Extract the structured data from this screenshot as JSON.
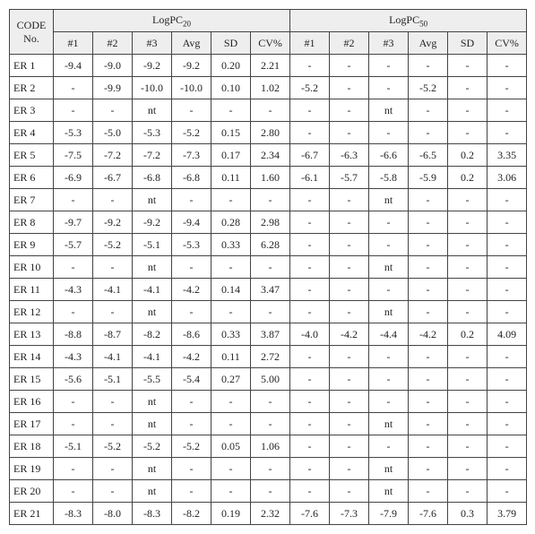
{
  "header": {
    "code_label": "CODE\nNo.",
    "group1": "LogPC",
    "group1_sub": "20",
    "group2": "LogPC",
    "group2_sub": "50",
    "cols": [
      "#1",
      "#2",
      "#3",
      "Avg",
      "SD",
      "CV%"
    ]
  },
  "rows": [
    {
      "code": "ER 1",
      "v": [
        "-9.4",
        "-9.0",
        "-9.2",
        "-9.2",
        "0.20",
        "2.21",
        "-",
        "-",
        "-",
        "-",
        "-",
        "-"
      ]
    },
    {
      "code": "ER 2",
      "v": [
        "-",
        "-9.9",
        "-10.0",
        "-10.0",
        "0.10",
        "1.02",
        "-5.2",
        "-",
        "-",
        "-5.2",
        "-",
        "-"
      ]
    },
    {
      "code": "ER 3",
      "v": [
        "-",
        "-",
        "nt",
        "-",
        "-",
        "-",
        "-",
        "-",
        "nt",
        "-",
        "-",
        "-"
      ]
    },
    {
      "code": "ER 4",
      "v": [
        "-5.3",
        "-5.0",
        "-5.3",
        "-5.2",
        "0.15",
        "2.80",
        "-",
        "-",
        "-",
        "-",
        "-",
        "-"
      ]
    },
    {
      "code": "ER 5",
      "v": [
        "-7.5",
        "-7.2",
        "-7.2",
        "-7.3",
        "0.17",
        "2.34",
        "-6.7",
        "-6.3",
        "-6.6",
        "-6.5",
        "0.2",
        "3.35"
      ]
    },
    {
      "code": "ER 6",
      "v": [
        "-6.9",
        "-6.7",
        "-6.8",
        "-6.8",
        "0.11",
        "1.60",
        "-6.1",
        "-5.7",
        "-5.8",
        "-5.9",
        "0.2",
        "3.06"
      ]
    },
    {
      "code": "ER 7",
      "v": [
        "-",
        "-",
        "nt",
        "-",
        "-",
        "-",
        "-",
        "-",
        "nt",
        "-",
        "-",
        "-"
      ]
    },
    {
      "code": "ER 8",
      "v": [
        "-9.7",
        "-9.2",
        "-9.2",
        "-9.4",
        "0.28",
        "2.98",
        "-",
        "-",
        "-",
        "-",
        "-",
        "-"
      ]
    },
    {
      "code": "ER 9",
      "v": [
        "-5.7",
        "-5.2",
        "-5.1",
        "-5.3",
        "0.33",
        "6.28",
        "-",
        "-",
        "-",
        "-",
        "-",
        "-"
      ]
    },
    {
      "code": "ER 10",
      "v": [
        "-",
        "-",
        "nt",
        "-",
        "-",
        "-",
        "-",
        "-",
        "nt",
        "-",
        "-",
        "-"
      ]
    },
    {
      "code": "ER 11",
      "v": [
        "-4.3",
        "-4.1",
        "-4.1",
        "-4.2",
        "0.14",
        "3.47",
        "-",
        "-",
        "-",
        "-",
        "-",
        "-"
      ]
    },
    {
      "code": "ER 12",
      "v": [
        "-",
        "-",
        "nt",
        "-",
        "-",
        "-",
        "-",
        "-",
        "nt",
        "-",
        "-",
        "-"
      ]
    },
    {
      "code": "ER 13",
      "v": [
        "-8.8",
        "-8.7",
        "-8.2",
        "-8.6",
        "0.33",
        "3.87",
        "-4.0",
        "-4.2",
        "-4.4",
        "-4.2",
        "0.2",
        "4.09"
      ]
    },
    {
      "code": "ER 14",
      "v": [
        "-4.3",
        "-4.1",
        "-4.1",
        "-4.2",
        "0.11",
        "2.72",
        "-",
        "-",
        "-",
        "-",
        "-",
        "-"
      ]
    },
    {
      "code": "ER 15",
      "v": [
        "-5.6",
        "-5.1",
        "-5.5",
        "-5.4",
        "0.27",
        "5.00",
        "-",
        "-",
        "-",
        "-",
        "-",
        "-"
      ]
    },
    {
      "code": "ER 16",
      "v": [
        "-",
        "-",
        "nt",
        "-",
        "-",
        "-",
        "-",
        "-",
        "-",
        "-",
        "-",
        "-"
      ]
    },
    {
      "code": "ER 17",
      "v": [
        "-",
        "-",
        "nt",
        "-",
        "-",
        "-",
        "-",
        "-",
        "nt",
        "-",
        "-",
        "-"
      ]
    },
    {
      "code": "ER 18",
      "v": [
        "-5.1",
        "-5.2",
        "-5.2",
        "-5.2",
        "0.05",
        "1.06",
        "-",
        "-",
        "-",
        "-",
        "-",
        "-"
      ]
    },
    {
      "code": "ER 19",
      "v": [
        "-",
        "-",
        "nt",
        "-",
        "-",
        "-",
        "-",
        "-",
        "nt",
        "-",
        "-",
        "-"
      ]
    },
    {
      "code": "ER 20",
      "v": [
        "-",
        "-",
        "nt",
        "-",
        "-",
        "-",
        "-",
        "-",
        "nt",
        "-",
        "-",
        "-"
      ]
    },
    {
      "code": "ER 21",
      "v": [
        "-8.3",
        "-8.0",
        "-8.3",
        "-8.2",
        "0.19",
        "2.32",
        "-7.6",
        "-7.3",
        "-7.9",
        "-7.6",
        "0.3",
        "3.79"
      ]
    }
  ]
}
